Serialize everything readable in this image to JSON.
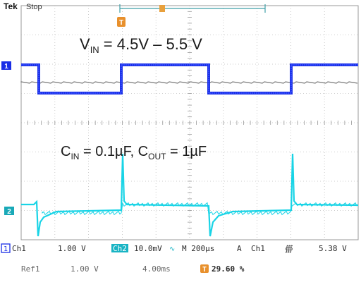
{
  "header": {
    "brand": "Tek",
    "acq_state": "Stop",
    "trigger_marker": "T"
  },
  "annotations": {
    "vin_sym": "V",
    "vin_sub": "IN",
    "vin_rest": " = 4.5V – 5.5 V",
    "cin_sym": "C",
    "cin_sub": "IN",
    "cin_mid": " = 0.1µF, C",
    "cout_sub": "OUT",
    "cout_rest": " = 1µF"
  },
  "channels": {
    "ch1_marker": "1",
    "ch2_marker": "2",
    "ch1_color": "#1a2ee6",
    "ch2_color": "#19d4e6",
    "ref_color": "#7a7a7a"
  },
  "status_bar": {
    "ch1_marker": "1",
    "ch1_label": "Ch1",
    "ch1_scale": "1.00 V",
    "ch2_label": "Ch2",
    "ch2_scale": "10.0mV",
    "time_label": "M 200µs",
    "trig_mode": "A",
    "trig_source": "Ch1",
    "trig_slope": "∰",
    "trig_level": "5.38 V",
    "ref_label": "Ref1",
    "ref_scale": "1.00 V",
    "ref_time": "4.00ms",
    "trig_pos_marker": "T",
    "trig_position": "29.60 %"
  }
}
